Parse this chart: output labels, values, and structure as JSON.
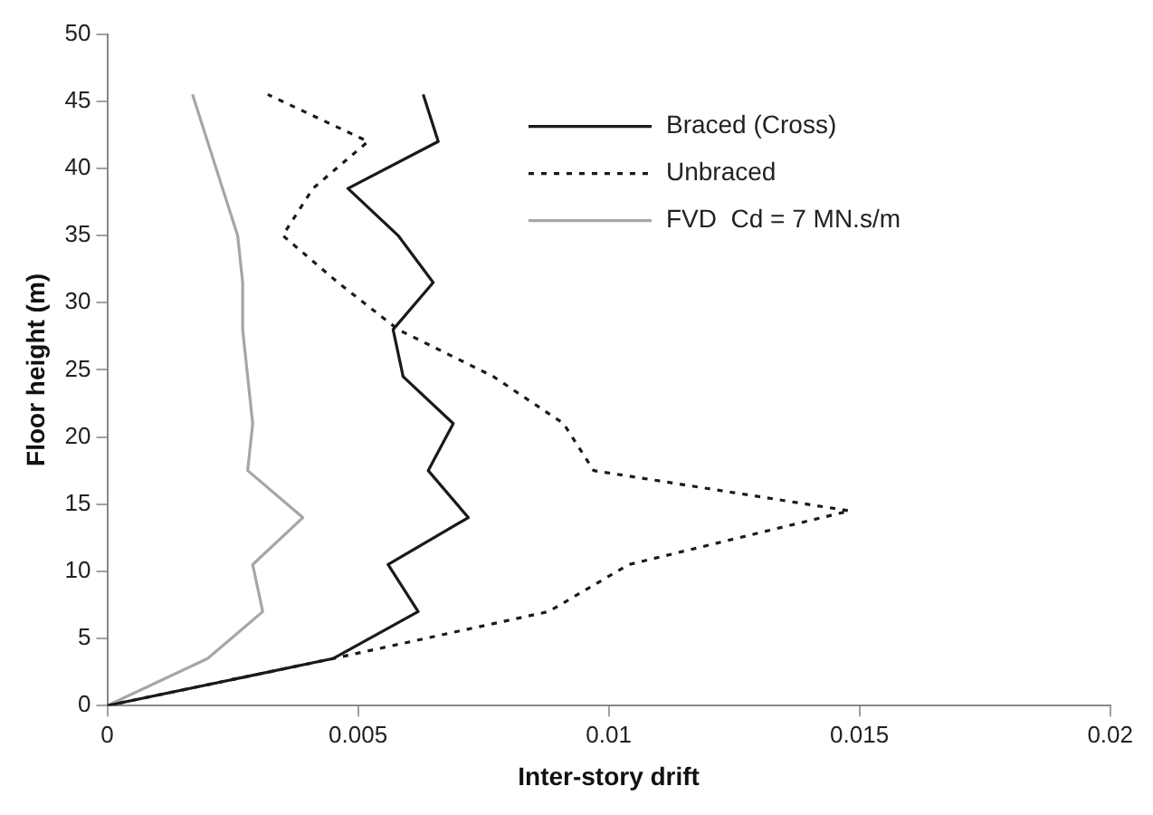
{
  "chart_data": {
    "type": "line",
    "xlabel": "Inter-story drift",
    "ylabel": "Floor height (m)",
    "xlim": [
      0,
      0.02
    ],
    "xticks": [
      0,
      0.005,
      0.01,
      0.015,
      0.02
    ],
    "ylim": [
      0,
      50
    ],
    "yticks": [
      0,
      5,
      10,
      15,
      20,
      25,
      30,
      35,
      40,
      45,
      50
    ],
    "grid": false,
    "legend": "top right",
    "marker": "none",
    "series": [
      {
        "name": "Braced (Cross)",
        "color": "#1a1a1a",
        "line_style": "solid",
        "x": [
          0,
          0.0045,
          0.0062,
          0.0056,
          0.0072,
          0.0064,
          0.0069,
          0.0059,
          0.0057,
          0.0065,
          0.0058,
          0.0048,
          0.0066,
          0.0063
        ],
        "values": [
          0,
          3.5,
          7,
          10.5,
          14,
          17.5,
          21,
          24.5,
          28,
          31.5,
          35,
          38.5,
          42,
          45.5
        ]
      },
      {
        "name": "Unbraced",
        "color": "#1a1a1a",
        "line_style": "dotted",
        "x": [
          0,
          0.0045,
          0.0088,
          0.0104,
          0.0148,
          0.0097,
          0.0091,
          0.0077,
          0.0058,
          0.0046,
          0.0035,
          0.0041,
          0.0052,
          0.0032
        ],
        "values": [
          0,
          3.5,
          7,
          10.5,
          14.5,
          17.5,
          21,
          24.5,
          28,
          31.5,
          35,
          38.5,
          42,
          45.5
        ]
      },
      {
        "name": "FVD  Cd = 7 MN.s/m",
        "color": "#a6a6a6",
        "line_style": "solid",
        "x": [
          0,
          0.002,
          0.0031,
          0.0029,
          0.0039,
          0.0028,
          0.0029,
          0.0028,
          0.0027,
          0.0027,
          0.0026,
          0.0023,
          0.002,
          0.0017
        ],
        "values": [
          0,
          3.5,
          7,
          10.5,
          14,
          17.5,
          21,
          24.5,
          28,
          31.5,
          35,
          38.5,
          42,
          45.5
        ]
      }
    ]
  }
}
